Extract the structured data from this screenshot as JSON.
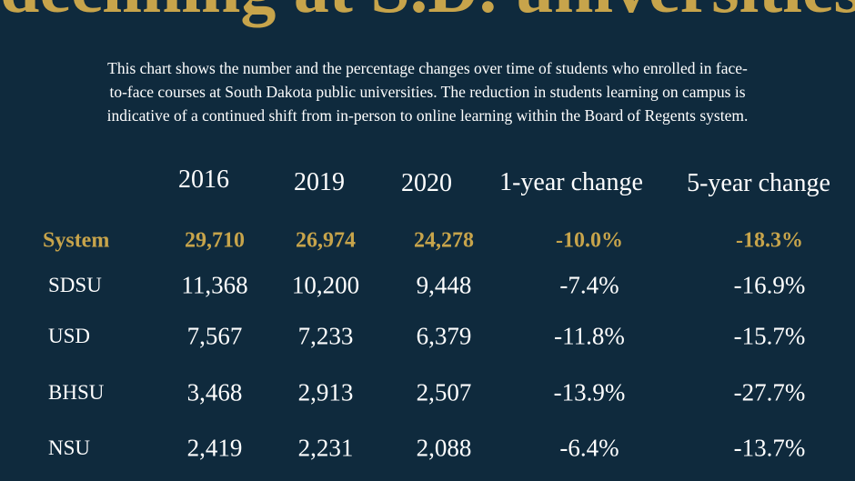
{
  "header": {
    "title": "declining at S.D. universities",
    "description": [
      "This chart shows the number and the percentage changes over time of students who enrolled in face-",
      "to-face courses at South Dakota public universities. The reduction in students learning on campus is",
      "indicative of a continued shift from in-person to online learning within the Board of Regents system."
    ]
  },
  "table": {
    "columns": [
      "2016",
      "2019",
      "2020",
      "1-year change",
      "5-year change"
    ],
    "rows": [
      [
        "System",
        "29,710",
        "26,974",
        "24,278",
        "-10.0%",
        "-18.3%"
      ],
      [
        "SDSU",
        "11,368",
        "10,200",
        "9,448",
        "-7.4%",
        "-16.9%"
      ],
      [
        "USD",
        "7,567",
        "7,233",
        "6,379",
        "-11.8%",
        "-15.7%"
      ],
      [
        "BHSU",
        "3,468",
        "2,913",
        "2,507",
        "-13.9%",
        "-27.7%"
      ],
      [
        "NSU",
        "2,419",
        "2,231",
        "2,088",
        "-6.4%",
        "-13.7%"
      ]
    ]
  }
}
